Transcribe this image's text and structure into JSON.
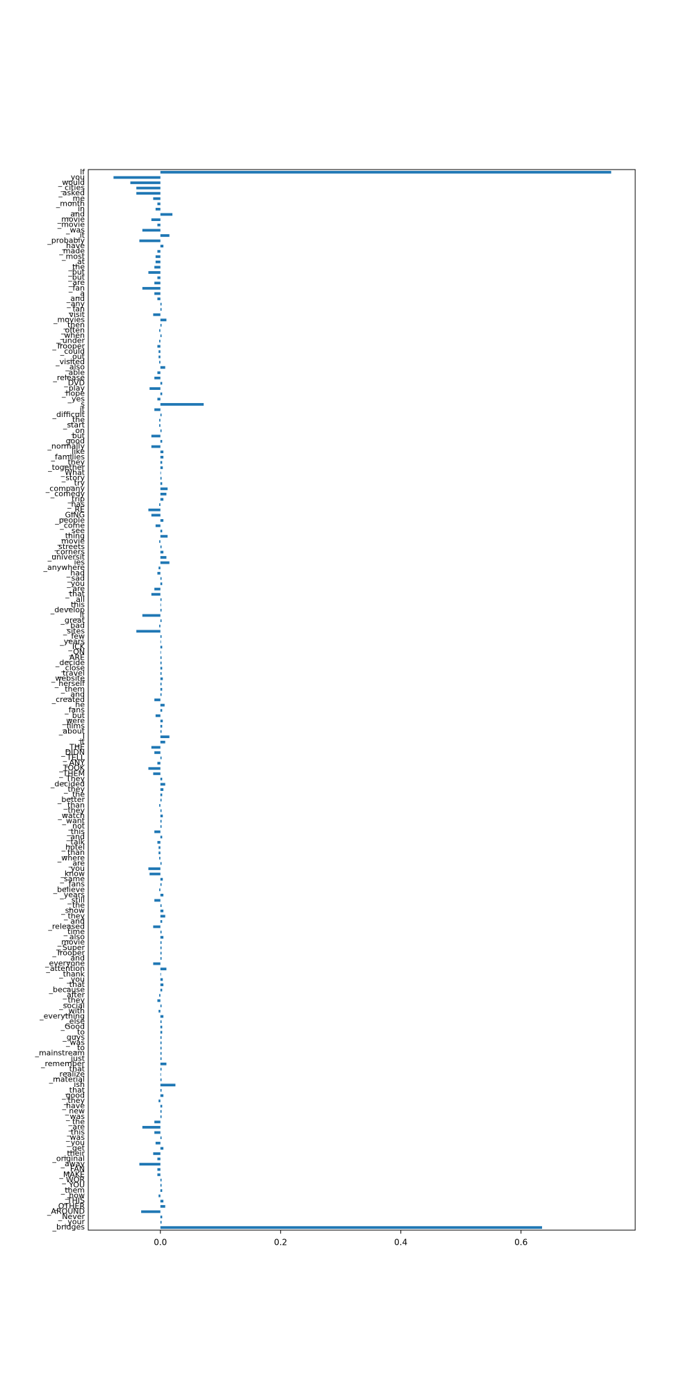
{
  "chart_data": {
    "type": "barh",
    "color": "#1f77b4",
    "categories": [
      "lf",
      "_you",
      "_would",
      "_cities",
      "_asked",
      "_me",
      "_month",
      "_in",
      "_and",
      "_movie",
      "_movie",
      "_was",
      "_it",
      "_probably",
      "_have",
      "_made",
      "_most",
      "_at",
      "_the",
      "_but",
      "_but",
      "_are",
      "_fan",
      "_a",
      "_and",
      "_any",
      "_fan",
      "_visit",
      "_movies",
      "_then",
      "_often",
      "_when",
      "_under",
      "_Trooper",
      "_could",
      "_out",
      "_visited",
      "_also",
      "_able",
      "_release",
      "_DVD",
      "_play",
      "_hope",
      "_yes",
      "s",
      "_it",
      "_difficult",
      "_the",
      "_start",
      "_on",
      "_but",
      "_good",
      "_normally",
      "_like",
      "_families",
      "_they",
      "_together",
      "_What",
      "_story",
      "_try",
      "_company",
      "_comedy",
      "_trip",
      "_has",
      "_RE",
      "_GING",
      "_people",
      "_come",
      "_see",
      "_thing",
      "_movie",
      "_streets",
      "_corners",
      "_universit",
      "ies",
      "_anywhere",
      "_had",
      "_sad",
      "_you",
      "_are",
      "_that",
      "_all",
      "_this",
      "_develop",
      "_it",
      "_great",
      "_bad",
      "_sites",
      "_few",
      "_years",
      "_ICK",
      "_ON",
      "_ARE",
      "_decide",
      "_close",
      "_travel",
      "_website",
      "_herself",
      "_them",
      "_and",
      "_created",
      "_he",
      "_fans",
      "_but",
      "_were",
      "_films",
      "_about",
      "_I",
      "_it",
      "_THE",
      "_DIDN",
      "_TELL",
      "_ANY",
      "_TOOK",
      "_THEM",
      "_They",
      "_decided",
      "_they",
      "_the",
      "_better",
      "_than",
      "_they",
      "_watch",
      "_want",
      "_not",
      "_this",
      "_and",
      "_talk",
      "_hotel",
      "_than",
      "_where",
      "_are",
      "_you",
      "_know",
      "_same",
      "_fans",
      "_believe",
      "_years",
      "_still",
      "_the",
      "_show",
      "_they",
      "_and",
      "_released",
      "_time",
      "_also",
      "_movie",
      "_Super",
      "_Trooper",
      "_and",
      "_everyone",
      "_attention",
      "_thank",
      "_you",
      "_that",
      "_because",
      "_after",
      "_they",
      "_social",
      "_with",
      "_everything",
      "_else",
      "_Good",
      "_to",
      "_guys",
      "_was",
      "_to",
      "_mainstream",
      "_just",
      "_remember",
      "_that",
      "_realize",
      "_material",
      "ish",
      "_that",
      "_good",
      "_they",
      "_have",
      "_new",
      "_was",
      "_the",
      "_are",
      "_this",
      "_was",
      "_you",
      "_get",
      "_their",
      "_original",
      "_away",
      "_FAN",
      "_MAKE",
      "_WOR",
      "_YOU",
      "_them",
      "_how",
      "_THIS",
      "_OTHER",
      "_AROUND",
      "_Never",
      "_your",
      "_bridges"
    ],
    "values": [
      0.75,
      -0.078,
      -0.05,
      -0.04,
      -0.04,
      -0.012,
      -0.005,
      -0.008,
      0.02,
      -0.015,
      -0.005,
      -0.03,
      0.015,
      -0.035,
      0.005,
      -0.005,
      -0.008,
      -0.008,
      -0.01,
      -0.02,
      -0.005,
      -0.01,
      -0.03,
      -0.01,
      -0.005,
      0.002,
      0.002,
      -0.012,
      0.01,
      0.002,
      -0.002,
      0.002,
      -0.002,
      -0.005,
      -0.003,
      -0.003,
      -0.002,
      0.008,
      -0.005,
      -0.01,
      0.003,
      -0.018,
      0.003,
      -0.005,
      0.072,
      -0.01,
      0.002,
      -0.002,
      -0.002,
      0.002,
      -0.015,
      0.003,
      -0.015,
      0.005,
      0.005,
      0.003,
      0.004,
      0.001,
      0.002,
      0.003,
      0.012,
      0.01,
      0.005,
      -0.002,
      -0.02,
      -0.015,
      0.005,
      -0.008,
      0.003,
      0.012,
      -0.002,
      0.002,
      0.005,
      0.01,
      0.015,
      -0.003,
      -0.005,
      0.002,
      0.003,
      -0.01,
      -0.015,
      0.002,
      0.001,
      0.002,
      -0.03,
      0.002,
      -0.002,
      -0.04,
      0.002,
      0.001,
      0.003,
      0.001,
      0.002,
      0.002,
      0.003,
      0.002,
      0.004,
      0.002,
      0.003,
      0.002,
      -0.01,
      0.007,
      0.003,
      -0.008,
      0.004,
      0.003,
      0.002,
      0.015,
      0.008,
      -0.015,
      -0.01,
      0.002,
      -0.005,
      -0.02,
      -0.012,
      0.003,
      0.008,
      0.005,
      0.003,
      0.002,
      -0.002,
      0.002,
      0.004,
      0.002,
      0.002,
      -0.01,
      0.003,
      -0.005,
      -0.003,
      -0.003,
      -0.002,
      0.002,
      -0.02,
      -0.018,
      0.004,
      0.002,
      -0.002,
      0.005,
      -0.01,
      0.002,
      0.005,
      0.008,
      0.003,
      -0.012,
      0.002,
      0.005,
      0.002,
      0.002,
      0.002,
      0.002,
      -0.012,
      0.01,
      0.001,
      0.004,
      0.005,
      0.003,
      -0.002,
      -0.005,
      0.002,
      -0.003,
      0.005,
      0.002,
      0.003,
      0.003,
      0.002,
      0.002,
      0.002,
      0.002,
      0.002,
      0.01,
      0.002,
      0.001,
      0.002,
      0.025,
      0.002,
      0.005,
      -0.003,
      0.003,
      0.002,
      0.002,
      -0.01,
      -0.03,
      -0.01,
      0.002,
      -0.008,
      0.005,
      -0.012,
      -0.005,
      -0.035,
      -0.005,
      -0.005,
      0.002,
      0.002,
      0.003,
      -0.003,
      0.005,
      0.008,
      -0.032,
      0.003,
      0.002,
      0.635
    ],
    "xlim": [
      -0.12,
      0.79
    ],
    "xticks": [
      {
        "value": 0,
        "label": "0.0"
      },
      0.2,
      0.4,
      0.6
    ]
  }
}
